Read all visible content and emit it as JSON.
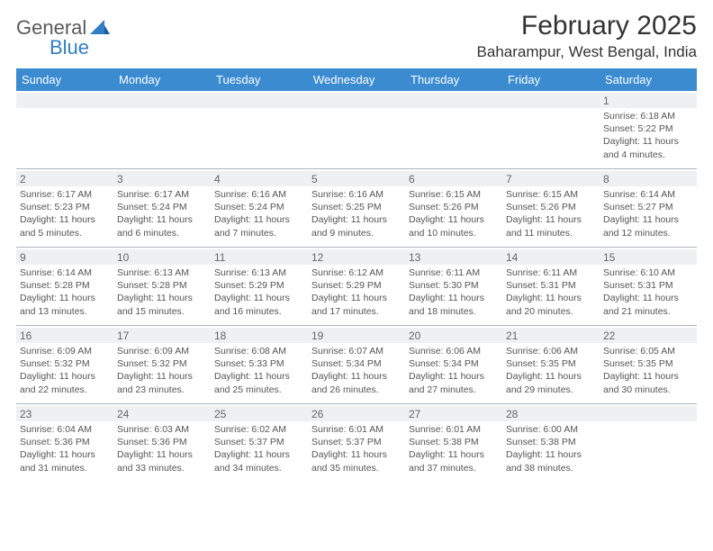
{
  "logo": {
    "part1": "General",
    "part2": "Blue"
  },
  "title": "February 2025",
  "location": "Baharampur, West Bengal, India",
  "colors": {
    "header_bg": "#3b8bd0",
    "header_text": "#ffffff",
    "daynum_bg": "#eef0f2",
    "border": "#aab4c0",
    "logo_gray": "#5a5a5a",
    "logo_blue": "#2f7fc2"
  },
  "dayNames": [
    "Sunday",
    "Monday",
    "Tuesday",
    "Wednesday",
    "Thursday",
    "Friday",
    "Saturday"
  ],
  "weeks": [
    [
      {
        "n": "",
        "sr": "",
        "ss": "",
        "dl1": "",
        "dl2": ""
      },
      {
        "n": "",
        "sr": "",
        "ss": "",
        "dl1": "",
        "dl2": ""
      },
      {
        "n": "",
        "sr": "",
        "ss": "",
        "dl1": "",
        "dl2": ""
      },
      {
        "n": "",
        "sr": "",
        "ss": "",
        "dl1": "",
        "dl2": ""
      },
      {
        "n": "",
        "sr": "",
        "ss": "",
        "dl1": "",
        "dl2": ""
      },
      {
        "n": "",
        "sr": "",
        "ss": "",
        "dl1": "",
        "dl2": ""
      },
      {
        "n": "1",
        "sr": "Sunrise: 6:18 AM",
        "ss": "Sunset: 5:22 PM",
        "dl1": "Daylight: 11 hours",
        "dl2": "and 4 minutes."
      }
    ],
    [
      {
        "n": "2",
        "sr": "Sunrise: 6:17 AM",
        "ss": "Sunset: 5:23 PM",
        "dl1": "Daylight: 11 hours",
        "dl2": "and 5 minutes."
      },
      {
        "n": "3",
        "sr": "Sunrise: 6:17 AM",
        "ss": "Sunset: 5:24 PM",
        "dl1": "Daylight: 11 hours",
        "dl2": "and 6 minutes."
      },
      {
        "n": "4",
        "sr": "Sunrise: 6:16 AM",
        "ss": "Sunset: 5:24 PM",
        "dl1": "Daylight: 11 hours",
        "dl2": "and 7 minutes."
      },
      {
        "n": "5",
        "sr": "Sunrise: 6:16 AM",
        "ss": "Sunset: 5:25 PM",
        "dl1": "Daylight: 11 hours",
        "dl2": "and 9 minutes."
      },
      {
        "n": "6",
        "sr": "Sunrise: 6:15 AM",
        "ss": "Sunset: 5:26 PM",
        "dl1": "Daylight: 11 hours",
        "dl2": "and 10 minutes."
      },
      {
        "n": "7",
        "sr": "Sunrise: 6:15 AM",
        "ss": "Sunset: 5:26 PM",
        "dl1": "Daylight: 11 hours",
        "dl2": "and 11 minutes."
      },
      {
        "n": "8",
        "sr": "Sunrise: 6:14 AM",
        "ss": "Sunset: 5:27 PM",
        "dl1": "Daylight: 11 hours",
        "dl2": "and 12 minutes."
      }
    ],
    [
      {
        "n": "9",
        "sr": "Sunrise: 6:14 AM",
        "ss": "Sunset: 5:28 PM",
        "dl1": "Daylight: 11 hours",
        "dl2": "and 13 minutes."
      },
      {
        "n": "10",
        "sr": "Sunrise: 6:13 AM",
        "ss": "Sunset: 5:28 PM",
        "dl1": "Daylight: 11 hours",
        "dl2": "and 15 minutes."
      },
      {
        "n": "11",
        "sr": "Sunrise: 6:13 AM",
        "ss": "Sunset: 5:29 PM",
        "dl1": "Daylight: 11 hours",
        "dl2": "and 16 minutes."
      },
      {
        "n": "12",
        "sr": "Sunrise: 6:12 AM",
        "ss": "Sunset: 5:29 PM",
        "dl1": "Daylight: 11 hours",
        "dl2": "and 17 minutes."
      },
      {
        "n": "13",
        "sr": "Sunrise: 6:11 AM",
        "ss": "Sunset: 5:30 PM",
        "dl1": "Daylight: 11 hours",
        "dl2": "and 18 minutes."
      },
      {
        "n": "14",
        "sr": "Sunrise: 6:11 AM",
        "ss": "Sunset: 5:31 PM",
        "dl1": "Daylight: 11 hours",
        "dl2": "and 20 minutes."
      },
      {
        "n": "15",
        "sr": "Sunrise: 6:10 AM",
        "ss": "Sunset: 5:31 PM",
        "dl1": "Daylight: 11 hours",
        "dl2": "and 21 minutes."
      }
    ],
    [
      {
        "n": "16",
        "sr": "Sunrise: 6:09 AM",
        "ss": "Sunset: 5:32 PM",
        "dl1": "Daylight: 11 hours",
        "dl2": "and 22 minutes."
      },
      {
        "n": "17",
        "sr": "Sunrise: 6:09 AM",
        "ss": "Sunset: 5:32 PM",
        "dl1": "Daylight: 11 hours",
        "dl2": "and 23 minutes."
      },
      {
        "n": "18",
        "sr": "Sunrise: 6:08 AM",
        "ss": "Sunset: 5:33 PM",
        "dl1": "Daylight: 11 hours",
        "dl2": "and 25 minutes."
      },
      {
        "n": "19",
        "sr": "Sunrise: 6:07 AM",
        "ss": "Sunset: 5:34 PM",
        "dl1": "Daylight: 11 hours",
        "dl2": "and 26 minutes."
      },
      {
        "n": "20",
        "sr": "Sunrise: 6:06 AM",
        "ss": "Sunset: 5:34 PM",
        "dl1": "Daylight: 11 hours",
        "dl2": "and 27 minutes."
      },
      {
        "n": "21",
        "sr": "Sunrise: 6:06 AM",
        "ss": "Sunset: 5:35 PM",
        "dl1": "Daylight: 11 hours",
        "dl2": "and 29 minutes."
      },
      {
        "n": "22",
        "sr": "Sunrise: 6:05 AM",
        "ss": "Sunset: 5:35 PM",
        "dl1": "Daylight: 11 hours",
        "dl2": "and 30 minutes."
      }
    ],
    [
      {
        "n": "23",
        "sr": "Sunrise: 6:04 AM",
        "ss": "Sunset: 5:36 PM",
        "dl1": "Daylight: 11 hours",
        "dl2": "and 31 minutes."
      },
      {
        "n": "24",
        "sr": "Sunrise: 6:03 AM",
        "ss": "Sunset: 5:36 PM",
        "dl1": "Daylight: 11 hours",
        "dl2": "and 33 minutes."
      },
      {
        "n": "25",
        "sr": "Sunrise: 6:02 AM",
        "ss": "Sunset: 5:37 PM",
        "dl1": "Daylight: 11 hours",
        "dl2": "and 34 minutes."
      },
      {
        "n": "26",
        "sr": "Sunrise: 6:01 AM",
        "ss": "Sunset: 5:37 PM",
        "dl1": "Daylight: 11 hours",
        "dl2": "and 35 minutes."
      },
      {
        "n": "27",
        "sr": "Sunrise: 6:01 AM",
        "ss": "Sunset: 5:38 PM",
        "dl1": "Daylight: 11 hours",
        "dl2": "and 37 minutes."
      },
      {
        "n": "28",
        "sr": "Sunrise: 6:00 AM",
        "ss": "Sunset: 5:38 PM",
        "dl1": "Daylight: 11 hours",
        "dl2": "and 38 minutes."
      },
      {
        "n": "",
        "sr": "",
        "ss": "",
        "dl1": "",
        "dl2": ""
      }
    ]
  ]
}
